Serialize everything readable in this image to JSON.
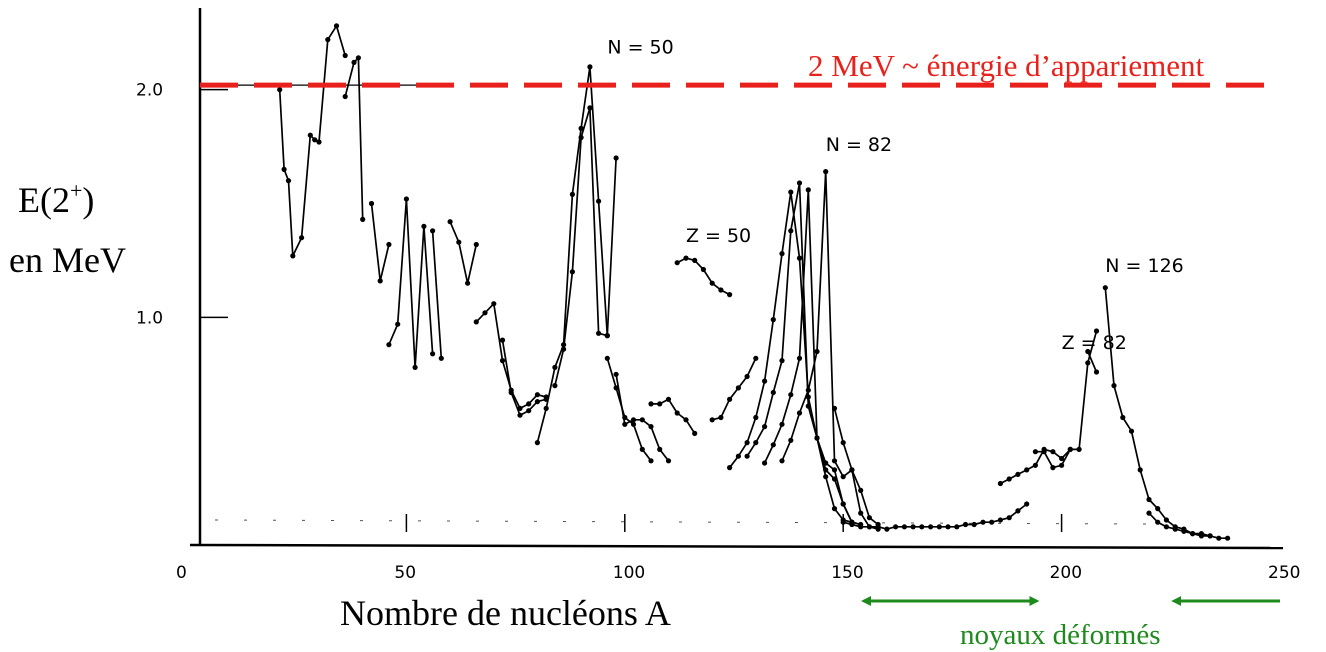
{
  "chart_data": {
    "type": "line",
    "xlabel": "Nombre de nucléons A",
    "ylabel_line1": "E(2",
    "ylabel_sup": "+",
    "ylabel_line1_end": ")",
    "ylabel_line2": "en MeV",
    "xlim": [
      0,
      250
    ],
    "ylim": [
      0,
      2.35
    ],
    "xticks": [
      {
        "value": 0,
        "label": "0"
      },
      {
        "value": 50,
        "label": "50"
      },
      {
        "value": 100,
        "label": "100"
      },
      {
        "value": 150,
        "label": "150"
      },
      {
        "value": 200,
        "label": "200"
      },
      {
        "value": 250,
        "label": "250"
      }
    ],
    "yticks": [
      {
        "value": 1.0,
        "label": "1.0"
      },
      {
        "value": 2.0,
        "label": "2.0"
      }
    ],
    "reference_line": {
      "y": 2.02,
      "label": "2 MeV ~ énergie d’appariement",
      "color": "#e8211c"
    },
    "annotations": [
      {
        "text": "N = 50",
        "x": 96,
        "y": 2.16
      },
      {
        "text": "N = 82",
        "x": 146,
        "y": 1.73
      },
      {
        "text": "Z = 50",
        "x": 114,
        "y": 1.33
      },
      {
        "text": "N = 126",
        "x": 210,
        "y": 1.2
      },
      {
        "text": "Z = 82",
        "x": 200,
        "y": 0.86
      }
    ],
    "deformed_regions": {
      "label": "noyaux déformés",
      "color": "#1e8a1e",
      "ranges": [
        [
          155,
          194
        ],
        [
          226,
          250
        ]
      ]
    },
    "series": [
      {
        "points": [
          [
            21,
            2.0
          ],
          [
            22,
            1.65
          ],
          [
            23,
            1.6
          ],
          [
            24,
            1.27
          ],
          [
            26,
            1.35
          ],
          [
            28,
            1.8
          ],
          [
            29,
            1.78
          ],
          [
            30,
            1.77
          ],
          [
            32,
            2.22
          ],
          [
            34,
            2.28
          ],
          [
            36,
            2.15
          ]
        ]
      },
      {
        "points": [
          [
            36,
            1.97
          ],
          [
            38,
            2.12
          ],
          [
            39,
            2.14
          ],
          [
            40,
            1.43
          ]
        ]
      },
      {
        "points": [
          [
            42,
            1.5
          ],
          [
            44,
            1.16
          ],
          [
            46,
            1.32
          ]
        ]
      },
      {
        "points": [
          [
            46,
            0.88
          ],
          [
            48,
            0.97
          ],
          [
            50,
            1.52
          ],
          [
            52,
            0.78
          ],
          [
            54,
            1.4
          ],
          [
            56,
            0.84
          ]
        ]
      },
      {
        "points": [
          [
            56,
            1.38
          ],
          [
            58,
            0.82
          ]
        ]
      },
      {
        "points": [
          [
            60,
            1.42
          ],
          [
            62,
            1.33
          ],
          [
            64,
            1.15
          ],
          [
            66,
            1.32
          ]
        ]
      },
      {
        "points": [
          [
            66,
            0.98
          ],
          [
            68,
            1.02
          ],
          [
            70,
            1.06
          ],
          [
            72,
            0.81
          ],
          [
            74,
            0.68
          ],
          [
            76,
            0.6
          ],
          [
            78,
            0.62
          ],
          [
            80,
            0.66
          ],
          [
            82,
            0.65
          ]
        ]
      },
      {
        "points": [
          [
            72,
            0.9
          ],
          [
            74,
            0.67
          ],
          [
            76,
            0.57
          ],
          [
            78,
            0.59
          ],
          [
            80,
            0.63
          ],
          [
            82,
            0.64
          ]
        ]
      },
      {
        "points": [
          [
            80,
            0.45
          ],
          [
            82,
            0.6
          ],
          [
            84,
            0.78
          ],
          [
            86,
            0.88
          ],
          [
            88,
            1.54
          ],
          [
            90,
            1.83
          ],
          [
            92,
            2.1
          ],
          [
            94,
            1.51
          ],
          [
            96,
            0.92
          ]
        ]
      },
      {
        "points": [
          [
            84,
            0.7
          ],
          [
            86,
            0.86
          ],
          [
            88,
            1.2
          ],
          [
            90,
            1.79
          ],
          [
            92,
            1.92
          ],
          [
            94,
            0.93
          ],
          [
            96,
            0.92
          ],
          [
            98,
            1.7
          ]
        ]
      },
      {
        "points": [
          [
            96,
            0.82
          ],
          [
            98,
            0.69
          ],
          [
            100,
            0.56
          ],
          [
            102,
            0.53
          ],
          [
            104,
            0.42
          ],
          [
            106,
            0.37
          ]
        ]
      },
      {
        "points": [
          [
            98,
            0.75
          ],
          [
            100,
            0.53
          ],
          [
            102,
            0.55
          ],
          [
            104,
            0.55
          ],
          [
            106,
            0.52
          ],
          [
            108,
            0.42
          ],
          [
            110,
            0.37
          ]
        ]
      },
      {
        "points": [
          [
            106,
            0.62
          ],
          [
            108,
            0.62
          ],
          [
            110,
            0.64
          ],
          [
            112,
            0.58
          ],
          [
            114,
            0.55
          ],
          [
            116,
            0.49
          ]
        ]
      },
      {
        "points": [
          [
            112,
            1.24
          ],
          [
            114,
            1.26
          ],
          [
            116,
            1.25
          ],
          [
            118,
            1.21
          ],
          [
            120,
            1.15
          ],
          [
            122,
            1.12
          ],
          [
            124,
            1.1
          ]
        ]
      },
      {
        "points": [
          [
            120,
            0.55
          ],
          [
            122,
            0.56
          ],
          [
            124,
            0.64
          ],
          [
            126,
            0.69
          ],
          [
            128,
            0.74
          ],
          [
            130,
            0.82
          ]
        ]
      },
      {
        "points": [
          [
            124,
            0.34
          ],
          [
            126,
            0.39
          ],
          [
            128,
            0.45
          ],
          [
            130,
            0.56
          ],
          [
            132,
            0.72
          ],
          [
            134,
            0.99
          ],
          [
            136,
            1.28
          ],
          [
            138,
            1.55
          ],
          [
            140,
            1.26
          ],
          [
            142,
            0.65
          ],
          [
            144,
            0.47
          ],
          [
            146,
            0.3
          ],
          [
            148,
            0.16
          ],
          [
            150,
            0.11
          ],
          [
            152,
            0.1
          ]
        ]
      },
      {
        "points": [
          [
            128,
            0.39
          ],
          [
            130,
            0.45
          ],
          [
            132,
            0.52
          ],
          [
            134,
            0.67
          ],
          [
            136,
            0.81
          ],
          [
            138,
            1.38
          ],
          [
            140,
            1.59
          ],
          [
            142,
            0.61
          ],
          [
            144,
            0.47
          ],
          [
            146,
            0.33
          ],
          [
            148,
            0.29
          ],
          [
            150,
            0.18
          ],
          [
            152,
            0.1
          ]
        ]
      },
      {
        "points": [
          [
            132,
            0.36
          ],
          [
            134,
            0.44
          ],
          [
            136,
            0.53
          ],
          [
            138,
            0.66
          ],
          [
            140,
            0.82
          ],
          [
            142,
            1.56
          ],
          [
            144,
            0.47
          ],
          [
            146,
            0.36
          ],
          [
            148,
            0.33
          ],
          [
            150,
            0.18
          ],
          [
            152,
            0.1
          ],
          [
            154,
            0.09
          ]
        ]
      },
      {
        "points": [
          [
            136,
            0.37
          ],
          [
            138,
            0.46
          ],
          [
            140,
            0.58
          ],
          [
            142,
            0.68
          ],
          [
            144,
            0.85
          ],
          [
            146,
            1.64
          ],
          [
            148,
            0.37
          ],
          [
            150,
            0.3
          ],
          [
            152,
            0.33
          ],
          [
            154,
            0.24
          ],
          [
            156,
            0.12
          ],
          [
            158,
            0.09
          ]
        ]
      },
      {
        "points": [
          [
            150,
            0.1
          ],
          [
            152,
            0.09
          ],
          [
            154,
            0.08
          ],
          [
            156,
            0.08
          ],
          [
            158,
            0.08
          ],
          [
            160,
            0.07
          ],
          [
            162,
            0.08
          ],
          [
            164,
            0.08
          ],
          [
            166,
            0.08
          ],
          [
            168,
            0.08
          ],
          [
            170,
            0.08
          ],
          [
            172,
            0.08
          ],
          [
            174,
            0.08
          ],
          [
            176,
            0.08
          ],
          [
            178,
            0.09
          ],
          [
            180,
            0.09
          ],
          [
            182,
            0.1
          ],
          [
            184,
            0.1
          ],
          [
            186,
            0.11
          ],
          [
            188,
            0.12
          ],
          [
            190,
            0.15
          ],
          [
            192,
            0.18
          ]
        ]
      },
      {
        "points": [
          [
            148,
            0.6
          ],
          [
            150,
            0.45
          ],
          [
            152,
            0.33
          ],
          [
            154,
            0.14
          ],
          [
            156,
            0.08
          ],
          [
            158,
            0.07
          ]
        ]
      },
      {
        "points": [
          [
            186,
            0.27
          ],
          [
            188,
            0.29
          ],
          [
            190,
            0.31
          ],
          [
            192,
            0.33
          ],
          [
            194,
            0.35
          ],
          [
            196,
            0.42
          ],
          [
            198,
            0.41
          ],
          [
            200,
            0.38
          ],
          [
            202,
            0.42
          ],
          [
            204,
            0.42
          ],
          [
            206,
            0.8
          ],
          [
            208,
            0.94
          ]
        ]
      },
      {
        "points": [
          [
            194,
            0.41
          ],
          [
            196,
            0.41
          ],
          [
            198,
            0.34
          ],
          [
            200,
            0.35
          ],
          [
            202,
            0.42
          ]
        ]
      },
      {
        "points": [
          [
            206,
            0.85
          ],
          [
            208,
            0.76
          ]
        ]
      },
      {
        "points": [
          [
            210,
            1.13
          ],
          [
            212,
            0.7
          ],
          [
            214,
            0.56
          ],
          [
            216,
            0.5
          ],
          [
            218,
            0.33
          ],
          [
            220,
            0.2
          ],
          [
            222,
            0.16
          ],
          [
            224,
            0.11
          ],
          [
            226,
            0.08
          ],
          [
            228,
            0.07
          ],
          [
            230,
            0.05
          ],
          [
            232,
            0.04
          ],
          [
            234,
            0.04
          ],
          [
            236,
            0.03
          ],
          [
            238,
            0.03
          ]
        ]
      },
      {
        "points": [
          [
            220,
            0.14
          ],
          [
            222,
            0.1
          ],
          [
            224,
            0.08
          ],
          [
            226,
            0.07
          ],
          [
            228,
            0.06
          ],
          [
            230,
            0.05
          ],
          [
            232,
            0.05
          ],
          [
            234,
            0.04
          ]
        ]
      }
    ]
  }
}
